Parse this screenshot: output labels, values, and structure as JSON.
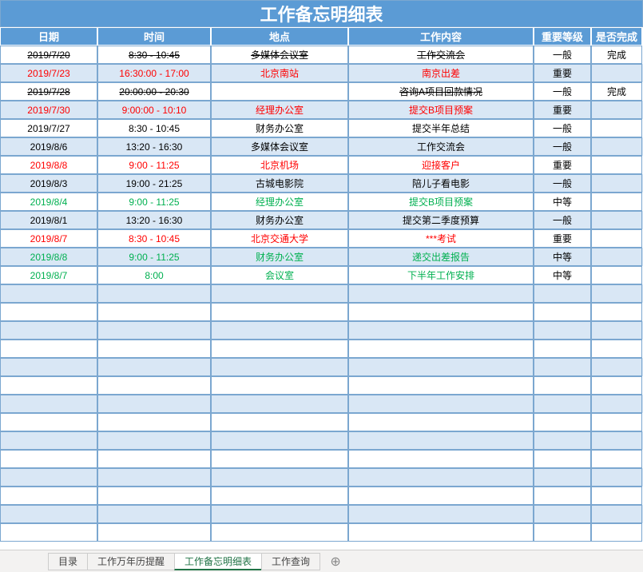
{
  "title": "工作备忘明细表",
  "headers": {
    "date": "日期",
    "time": "时间",
    "place": "地点",
    "work": "工作内容",
    "level": "重要等级",
    "done": "是否完成"
  },
  "colors": {
    "header_bg": "#5b9bd5",
    "header_text": "#ffffff",
    "band_even": "#d9e7f5",
    "band_odd": "#ffffff",
    "border": "#7ba7d0",
    "text_important": "#ff0000",
    "text_medium": "#00b050",
    "text_normal": "#000000",
    "tabbar_bg": "#f3f2f1",
    "tab_active_underline": "#217346"
  },
  "level_labels": {
    "important": "重要",
    "medium": "中等",
    "normal": "一般"
  },
  "rows": [
    {
      "date": "2019/7/20",
      "time": "8:30 - 10:45",
      "place": "多媒体会议室",
      "work": "工作交流会",
      "level": "一般",
      "level_key": "normal",
      "done": "完成",
      "strike": true
    },
    {
      "date": "2019/7/23",
      "time": "16:30:00 - 17:00",
      "place": "北京南站",
      "work": "南京出差",
      "level": "重要",
      "level_key": "important",
      "done": "",
      "strike": false
    },
    {
      "date": "2019/7/28",
      "time": "20:00:00 - 20:30",
      "place": "",
      "work": "咨询A项目回款情况",
      "level": "一般",
      "level_key": "normal",
      "done": "完成",
      "strike": true
    },
    {
      "date": "2019/7/30",
      "time": "9:00:00 - 10:10",
      "place": "经理办公室",
      "work": "提交B项目预案",
      "level": "重要",
      "level_key": "important",
      "done": "",
      "strike": false
    },
    {
      "date": "2019/7/27",
      "time": "8:30 - 10:45",
      "place": "财务办公室",
      "work": "提交半年总结",
      "level": "一般",
      "level_key": "normal",
      "done": "",
      "strike": false
    },
    {
      "date": "2019/8/6",
      "time": "13:20 - 16:30",
      "place": "多媒体会议室",
      "work": "工作交流会",
      "level": "一般",
      "level_key": "normal",
      "done": "",
      "strike": false
    },
    {
      "date": "2019/8/8",
      "time": "9:00 - 11:25",
      "place": "北京机场",
      "work": "迎接客户",
      "level": "重要",
      "level_key": "important",
      "done": "",
      "strike": false
    },
    {
      "date": "2019/8/3",
      "time": "19:00 - 21:25",
      "place": "古城电影院",
      "work": "陪儿子看电影",
      "level": "一般",
      "level_key": "normal",
      "done": "",
      "strike": false
    },
    {
      "date": "2019/8/4",
      "time": "9:00 - 11:25",
      "place": "经理办公室",
      "work": "提交B项目预案",
      "level": "中等",
      "level_key": "medium",
      "done": "",
      "strike": false
    },
    {
      "date": "2019/8/1",
      "time": "13:20 - 16:30",
      "place": "财务办公室",
      "work": "提交第二季度预算",
      "level": "一般",
      "level_key": "normal",
      "done": "",
      "strike": false
    },
    {
      "date": "2019/8/7",
      "time": "8:30 - 10:45",
      "place": "北京交通大学",
      "work": "***考试",
      "level": "重要",
      "level_key": "important",
      "done": "",
      "strike": false
    },
    {
      "date": "2019/8/8",
      "time": "9:00 - 11:25",
      "place": "财务办公室",
      "work": "递交出差报告",
      "level": "中等",
      "level_key": "medium",
      "done": "",
      "strike": false
    },
    {
      "date": "2019/8/7",
      "time": "8:00",
      "place": "会议室",
      "work": "下半年工作安排",
      "level": "中等",
      "level_key": "medium",
      "done": "",
      "strike": false
    }
  ],
  "empty_rows_count": 14,
  "tabs": [
    {
      "label": "目录",
      "active": false
    },
    {
      "label": "工作万年历提醒",
      "active": false
    },
    {
      "label": "工作备忘明细表",
      "active": true
    },
    {
      "label": "工作查询",
      "active": false
    }
  ]
}
